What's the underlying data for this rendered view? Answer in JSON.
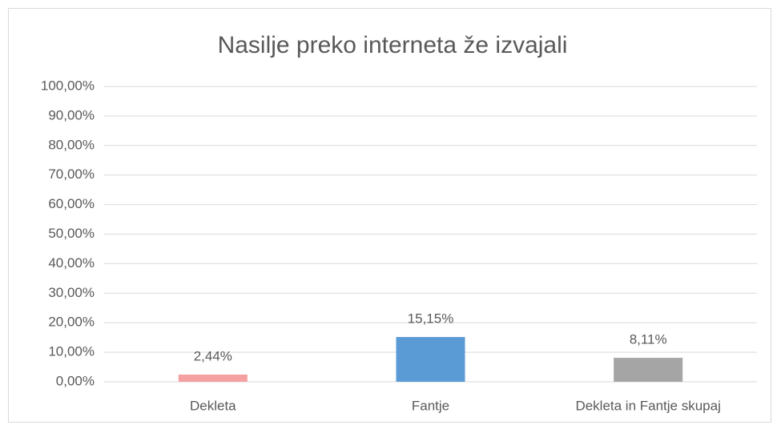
{
  "chart_data": {
    "type": "bar",
    "title": "Nasilje preko interneta že izvajali",
    "categories": [
      "Dekleta",
      "Fantje",
      "Dekleta in Fantje skupaj"
    ],
    "values": [
      2.44,
      15.15,
      8.11
    ],
    "value_labels": [
      "2,44%",
      "15,15%",
      "8,11%"
    ],
    "colors": [
      "#f4a0a0",
      "#5b9bd5",
      "#a5a5a5"
    ],
    "ylim": [
      0,
      100
    ],
    "yticks": [
      {
        "value": 0,
        "label": "0,00%"
      },
      {
        "value": 10,
        "label": "10,00%"
      },
      {
        "value": 20,
        "label": "20,00%"
      },
      {
        "value": 30,
        "label": "30,00%"
      },
      {
        "value": 40,
        "label": "40,00%"
      },
      {
        "value": 50,
        "label": "50,00%"
      },
      {
        "value": 60,
        "label": "60,00%"
      },
      {
        "value": 70,
        "label": "70,00%"
      },
      {
        "value": 80,
        "label": "80,00%"
      },
      {
        "value": 90,
        "label": "90,00%"
      },
      {
        "value": 100,
        "label": "100,00%"
      }
    ],
    "grid": true
  }
}
